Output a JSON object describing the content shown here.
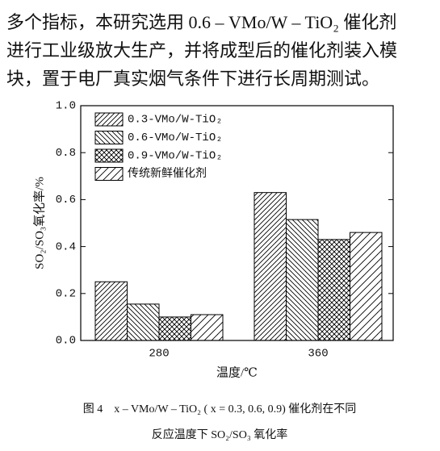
{
  "paragraph": {
    "lines": [
      "多个指标，本研究选用 0.6 – VMo/W – TiO₂ 催化剂",
      "进行工业级放大生产，并将成型后的催化剂装入模",
      "块，置于电厂真实烟气条件下进行长周期测试。"
    ]
  },
  "chart_data": {
    "type": "bar",
    "categories": [
      "280",
      "360"
    ],
    "series": [
      {
        "name": "0.3-VMo/W-TiO₂",
        "color": "#000000",
        "hatch": "diagonal",
        "values": [
          0.25,
          0.63
        ]
      },
      {
        "name": "0.6-VMo/W-TiO₂",
        "color": "#000000",
        "hatch": "back-diagonal",
        "values": [
          0.155,
          0.515
        ]
      },
      {
        "name": "0.9-VMo/W-TiO₂",
        "color": "#000000",
        "hatch": "cross",
        "values": [
          0.1,
          0.43
        ]
      },
      {
        "name": "传统新鲜催化剂",
        "color": "#000000",
        "hatch": "diagonal-wide",
        "values": [
          0.11,
          0.46
        ]
      }
    ],
    "ylim": [
      0,
      1.0
    ],
    "yticks": [
      {
        "value": 0,
        "label": "0.0"
      },
      0.2,
      0.4,
      0.6,
      0.8,
      {
        "value": 1.0,
        "label": "1.0"
      }
    ],
    "ylabel": "SO₂/SO₃氧化率/%",
    "xlabel": "温度/℃",
    "legend": "upper-left"
  },
  "caption": {
    "lines": [
      "图 4　x – VMo/W – TiO₂ ( x = 0.3, 0.6, 0.9) 催化剂在不同",
      "反应温度下 SO₂/SO₃ 氧化率"
    ]
  }
}
